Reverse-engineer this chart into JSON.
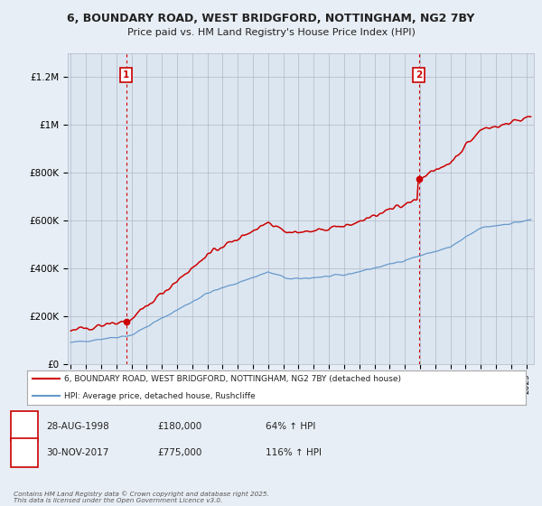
{
  "title": "6, BOUNDARY ROAD, WEST BRIDGFORD, NOTTINGHAM, NG2 7BY",
  "subtitle": "Price paid vs. HM Land Registry's House Price Index (HPI)",
  "footer": "Contains HM Land Registry data © Crown copyright and database right 2025.\nThis data is licensed under the Open Government Licence v3.0.",
  "legend_line1": "6, BOUNDARY ROAD, WEST BRIDGFORD, NOTTINGHAM, NG2 7BY (detached house)",
  "legend_line2": "HPI: Average price, detached house, Rushcliffe",
  "sale1_date": "28-AUG-1998",
  "sale1_price": "£180,000",
  "sale1_hpi": "64% ↑ HPI",
  "sale2_date": "30-NOV-2017",
  "sale2_price": "£775,000",
  "sale2_hpi": "116% ↑ HPI",
  "property_color": "#cc0000",
  "hpi_color": "#6699cc",
  "background_color": "#e8eef5",
  "plot_bg_color": "#dce6f0",
  "sale1_year": 1998.65,
  "sale1_value": 180000,
  "sale2_year": 2017.92,
  "sale2_value": 775000,
  "ylim": [
    0,
    1300000
  ],
  "xmin": 1994.8,
  "xmax": 2025.5,
  "yticks": [
    0,
    200000,
    400000,
    600000,
    800000,
    1000000,
    1200000
  ],
  "ytick_labels": [
    "£0",
    "£200K",
    "£400K",
    "£600K",
    "£800K",
    "£1M",
    "£1.2M"
  ]
}
